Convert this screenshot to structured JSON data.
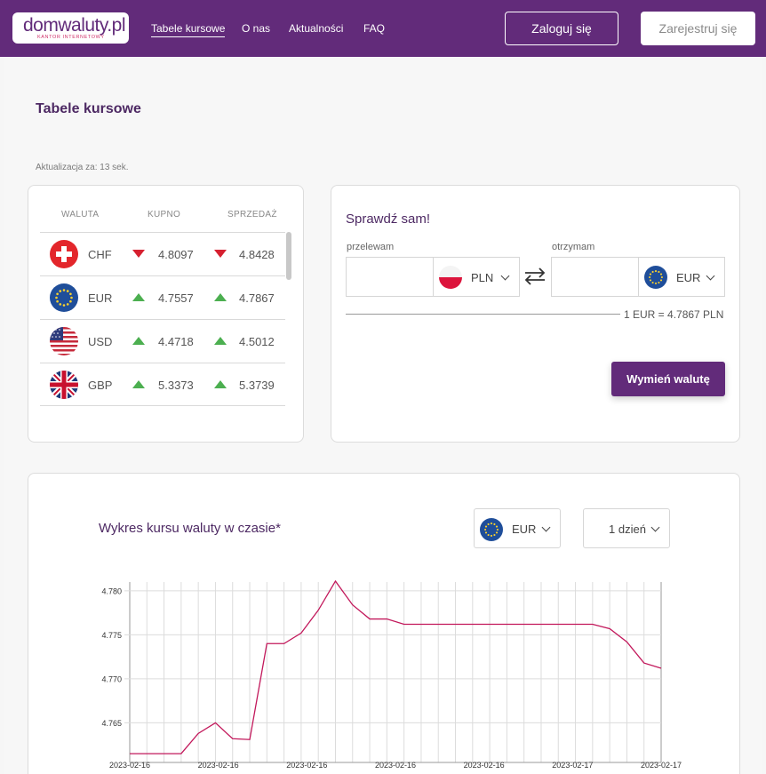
{
  "header": {
    "logo_text": "domwaluty.pl",
    "logo_subtitle": "KANTOR INTERNETOWY",
    "nav": [
      {
        "label": "Tabele kursowe",
        "active": true
      },
      {
        "label": "O nas",
        "active": false
      },
      {
        "label": "Aktualności",
        "active": false
      },
      {
        "label": "FAQ",
        "active": false
      }
    ],
    "login_label": "Zaloguj się",
    "register_label": "Zarejestruj się"
  },
  "page": {
    "title": "Tabele kursowe",
    "update_text": "Aktualizacja za: 13 sek."
  },
  "rates": {
    "headers": {
      "currency": "WALUTA",
      "buy": "KUPNO",
      "sell": "SPRZEDAŻ"
    },
    "rows": [
      {
        "code": "CHF",
        "flag": "switzerland-flag-icon",
        "buy": "4.8097",
        "buy_trend": "down",
        "sell": "4.8428",
        "sell_trend": "down"
      },
      {
        "code": "EUR",
        "flag": "eu-flag-icon",
        "buy": "4.7557",
        "buy_trend": "up",
        "sell": "4.7867",
        "sell_trend": "up"
      },
      {
        "code": "USD",
        "flag": "usa-flag-icon",
        "buy": "4.4718",
        "buy_trend": "up",
        "sell": "4.5012",
        "sell_trend": "up"
      },
      {
        "code": "GBP",
        "flag": "uk-flag-icon",
        "buy": "5.3373",
        "buy_trend": "up",
        "sell": "5.3739",
        "sell_trend": "up"
      }
    ]
  },
  "calculator": {
    "title": "Sprawdź sam!",
    "send_label": "przelewam",
    "send_value": "",
    "send_currency": "PLN",
    "receive_label": "otrzymam",
    "receive_value": "",
    "receive_currency": "EUR",
    "rate_info": "1 EUR = 4.7867 PLN",
    "exchange_label": "Wymień walutę"
  },
  "chart_panel": {
    "title": "Wykres kursu waluty w czasie*",
    "currency": "EUR",
    "period": "1 dzień"
  },
  "colors": {
    "brand": "#622b7a",
    "line": "#c2185b",
    "down": "#d62030",
    "up": "#4caf50"
  },
  "chart_data": {
    "type": "line",
    "title": "",
    "xlabel": "",
    "ylabel": "",
    "x_tick_labels": [
      "2023-02-16",
      "2023-02-16",
      "2023-02-16",
      "2023-02-16",
      "2023-02-16",
      "2023-02-17",
      "2023-02-17"
    ],
    "y_ticks": [
      "4.780",
      "4.775",
      "4.770",
      "4.765"
    ],
    "ylim": [
      4.7605,
      4.7815
    ],
    "grid": true,
    "series": [
      {
        "name": "",
        "values": [
          4.7615,
          4.7615,
          4.7615,
          4.7615,
          4.7638,
          4.765,
          4.7632,
          4.7631,
          4.774,
          4.774,
          4.7752,
          4.7778,
          4.7811,
          4.7784,
          4.7768,
          4.7768,
          4.7762,
          4.7762,
          4.7762,
          4.7762,
          4.7762,
          4.7762,
          4.7762,
          4.7762,
          4.7762,
          4.7762,
          4.7762,
          4.7762,
          4.7757,
          4.7742,
          4.7718,
          4.7712
        ]
      }
    ]
  }
}
